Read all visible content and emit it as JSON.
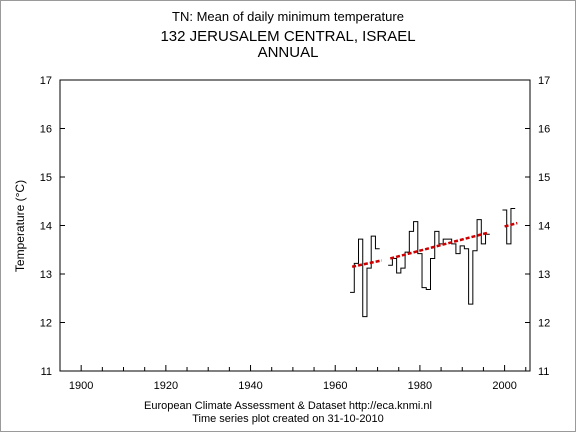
{
  "header": {
    "subtitle": "TN: Mean of daily minimum temperature",
    "station": "132 JERUSALEM CENTRAL, ISRAEL",
    "period": "ANNUAL"
  },
  "footer": {
    "line1": "European Climate Assessment & Dataset  http://eca.knmi.nl",
    "line2": "Time series plot created on 31-10-2010"
  },
  "chart_data": {
    "type": "line",
    "ylabel": "Temperature (°C)",
    "xlim": [
      1895,
      2006
    ],
    "ylim": [
      11,
      17
    ],
    "x_ticks": [
      1900,
      1920,
      1940,
      1960,
      1980,
      2000
    ],
    "y_ticks": [
      11,
      12,
      13,
      14,
      15,
      16,
      17
    ],
    "grid": false,
    "series": [
      {
        "style": "step",
        "color": "#000000",
        "points": [
          [
            1964,
            12.62
          ],
          [
            1965,
            13.22
          ],
          [
            1966,
            13.72
          ],
          [
            1967,
            12.12
          ],
          [
            1968,
            13.12
          ],
          [
            1969,
            13.78
          ],
          [
            1970,
            13.52
          ],
          [
            1971,
            null
          ],
          [
            1972,
            null
          ],
          [
            1973,
            13.18
          ],
          [
            1974,
            13.32
          ],
          [
            1975,
            13.02
          ],
          [
            1976,
            13.12
          ],
          [
            1977,
            13.45
          ],
          [
            1978,
            13.88
          ],
          [
            1979,
            14.08
          ],
          [
            1980,
            13.42
          ],
          [
            1981,
            12.72
          ],
          [
            1982,
            12.68
          ],
          [
            1983,
            13.32
          ],
          [
            1984,
            13.88
          ],
          [
            1985,
            13.62
          ],
          [
            1986,
            13.72
          ],
          [
            1987,
            13.72
          ],
          [
            1988,
            13.62
          ],
          [
            1989,
            13.42
          ],
          [
            1990,
            13.58
          ],
          [
            1991,
            13.52
          ],
          [
            1992,
            12.38
          ],
          [
            1993,
            13.48
          ],
          [
            1994,
            14.12
          ],
          [
            1995,
            13.62
          ],
          [
            1996,
            13.82
          ],
          [
            1997,
            null
          ],
          [
            1998,
            null
          ],
          [
            1999,
            null
          ],
          [
            2000,
            14.32
          ],
          [
            2001,
            13.62
          ],
          [
            2002,
            14.35
          ]
        ]
      },
      {
        "style": "trend",
        "color": "#cc0000",
        "segments": [
          [
            [
              1964,
              13.15
            ],
            [
              1971,
              13.28
            ]
          ],
          [
            [
              1973,
              13.32
            ],
            [
              1996,
              13.85
            ]
          ],
          [
            [
              2000,
              13.98
            ],
            [
              2003,
              14.05
            ]
          ]
        ]
      }
    ]
  }
}
